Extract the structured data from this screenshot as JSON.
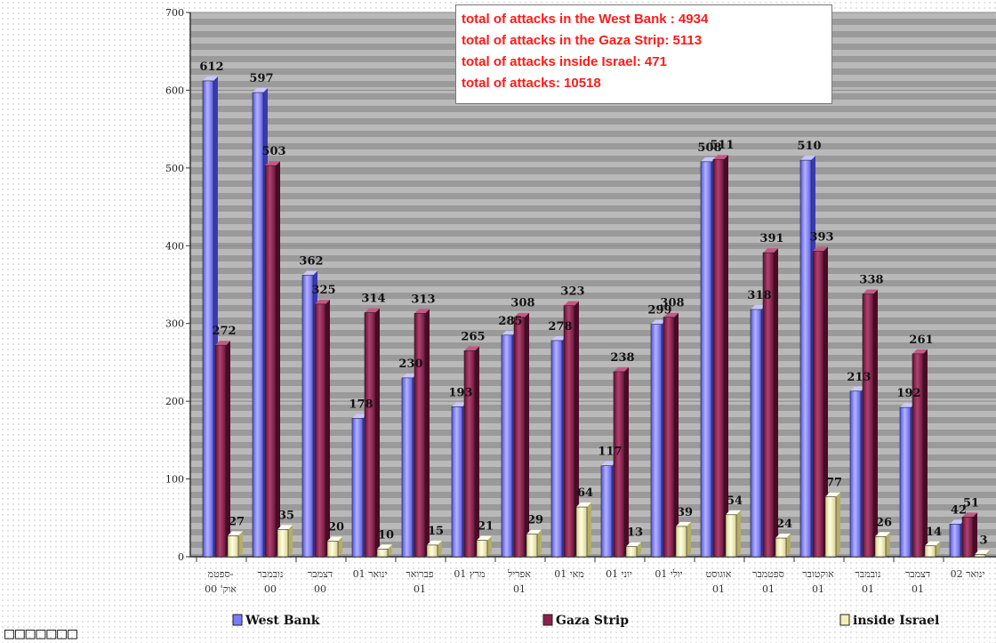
{
  "chart_data": {
    "type": "bar",
    "categories": [
      [
        "ספטמ-",
        "אוק' 00"
      ],
      [
        "נובמבר",
        "00"
      ],
      [
        "דצמבר",
        "00"
      ],
      [
        "ינואר 01",
        ""
      ],
      [
        "פברואר",
        "01"
      ],
      [
        "מרץ 01",
        ""
      ],
      [
        "אפריל",
        "01"
      ],
      [
        "מאי 01",
        ""
      ],
      [
        "יוני 01",
        ""
      ],
      [
        "יולי 01",
        ""
      ],
      [
        "אוגוסט",
        "01"
      ],
      [
        "ספטמבר",
        "01"
      ],
      [
        "אוקטובר",
        "01"
      ],
      [
        "נובמבר",
        "01"
      ],
      [
        "דצמבר",
        "01"
      ],
      [
        "ינואר 02",
        ""
      ]
    ],
    "series": [
      {
        "name": "West Bank",
        "color": "#7b7bff",
        "values": [
          612,
          597,
          362,
          178,
          230,
          193,
          285,
          278,
          117,
          299,
          508,
          318,
          510,
          213,
          192,
          42
        ]
      },
      {
        "name": "Gaza Strip",
        "color": "#8c1f4b",
        "values": [
          272,
          503,
          325,
          314,
          313,
          265,
          308,
          323,
          238,
          308,
          511,
          391,
          393,
          338,
          261,
          51
        ]
      },
      {
        "name": "inside Israel",
        "color": "#f4f0b8",
        "values": [
          27,
          35,
          20,
          10,
          15,
          21,
          29,
          64,
          13,
          39,
          54,
          24,
          77,
          26,
          14,
          3
        ]
      }
    ],
    "y_ticks": [
      "0",
      "100",
      "200",
      "300",
      "400",
      "500",
      "600",
      "700"
    ],
    "ylim": [
      0,
      700
    ],
    "grid": true,
    "legend_position": "bottom",
    "summary": [
      "total of attacks in the West Bank : 4934",
      "total of attacks in the Gaza Strip: 5113",
      "total of attacks inside Israel: 471",
      "total of attacks: 10518"
    ]
  },
  "footer_text": "□□□□□□□"
}
